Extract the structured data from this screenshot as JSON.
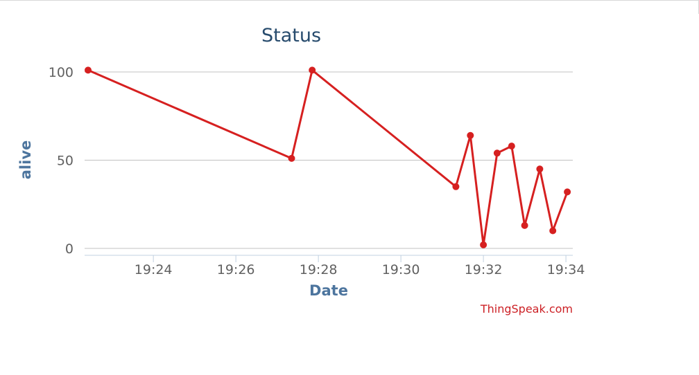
{
  "chart_data": {
    "type": "line",
    "title": "Status",
    "xlabel": "Date",
    "ylabel": "alive",
    "ylim": [
      0,
      100
    ],
    "yticks": [
      0,
      50,
      100
    ],
    "xticks": [
      "19:24",
      "19:26",
      "19:28",
      "19:30",
      "19:32",
      "19:34"
    ],
    "xlim": [
      "19:22:20",
      "19:34:10"
    ],
    "grid": "horizontal",
    "legend": "none",
    "credits": "ThingSpeak.com",
    "series": [
      {
        "color": "#d62020",
        "points": [
          {
            "x": "19:22:25",
            "y": 101
          },
          {
            "x": "19:27:21",
            "y": 51
          },
          {
            "x": "19:27:51",
            "y": 101
          },
          {
            "x": "19:31:20",
            "y": 35
          },
          {
            "x": "19:31:41",
            "y": 64
          },
          {
            "x": "19:32:00",
            "y": 2
          },
          {
            "x": "19:32:20",
            "y": 54
          },
          {
            "x": "19:32:41",
            "y": 58
          },
          {
            "x": "19:33:00",
            "y": 13
          },
          {
            "x": "19:33:22",
            "y": 45
          },
          {
            "x": "19:33:41",
            "y": 10
          },
          {
            "x": "19:34:02",
            "y": 32
          }
        ]
      }
    ]
  }
}
